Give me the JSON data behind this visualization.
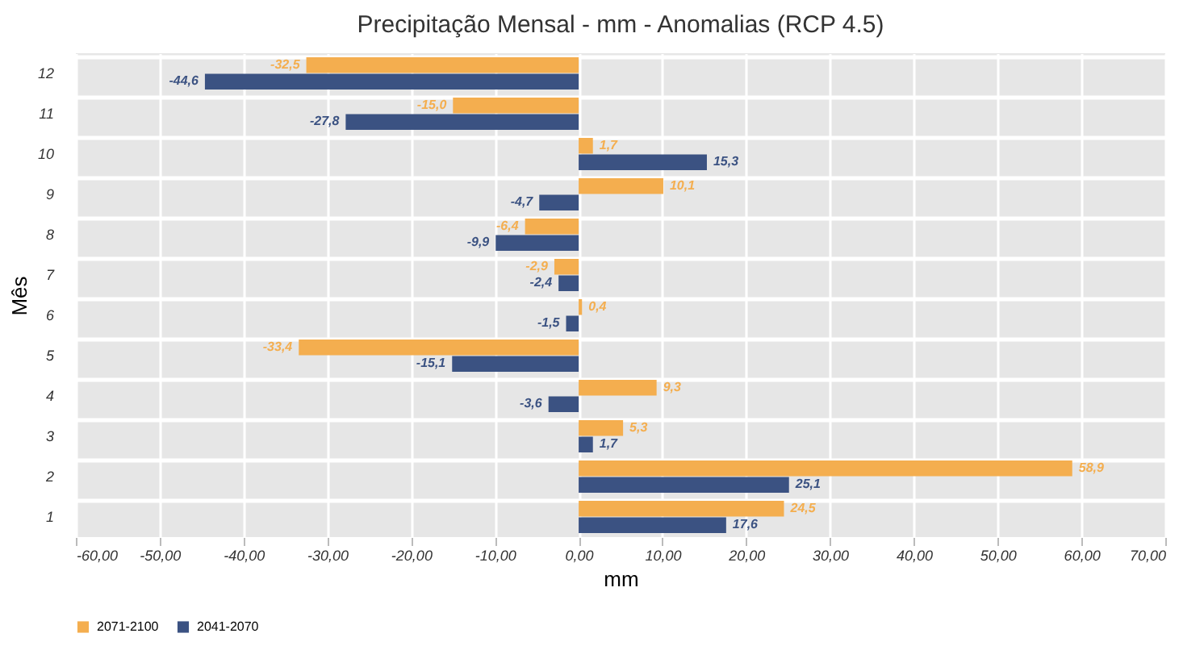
{
  "chart_data": {
    "type": "bar",
    "orientation": "horizontal",
    "title": "Precipitação Mensal - mm - Anomalias (RCP 4.5)",
    "xlabel": "mm",
    "ylabel": "Mês",
    "categories": [
      "12",
      "11",
      "10",
      "9",
      "8",
      "7",
      "6",
      "5",
      "4",
      "3",
      "2",
      "1"
    ],
    "series": [
      {
        "name": "2071-2100",
        "color": "#f4ae4f",
        "values": [
          -32.5,
          -15.0,
          1.7,
          10.1,
          -6.4,
          -2.9,
          0.4,
          -33.4,
          9.3,
          5.3,
          58.9,
          24.5
        ],
        "value_labels": [
          "-32,5",
          "-15,0",
          "1,7",
          "10,1",
          "-6,4",
          "-2,9",
          "0,4",
          "-33,4",
          "9,3",
          "5,3",
          "58,9",
          "24,5"
        ]
      },
      {
        "name": "2041-2070",
        "color": "#3b5282",
        "values": [
          -44.6,
          -27.8,
          15.3,
          -4.7,
          -9.9,
          -2.4,
          -1.5,
          -15.1,
          -3.6,
          1.7,
          25.1,
          17.6
        ],
        "value_labels": [
          "-44,6",
          "-27,8",
          "15,3",
          "-4,7",
          "-9,9",
          "-2,4",
          "-1,5",
          "-15,1",
          "-3,6",
          "1,7",
          "25,1",
          "17,6"
        ]
      }
    ],
    "xlim": [
      -60,
      70
    ],
    "xticks": [
      {
        "value": -60,
        "label": "-60,00"
      },
      {
        "value": -50,
        "label": "-50,00"
      },
      {
        "value": -40,
        "label": "-40,00"
      },
      {
        "value": -30,
        "label": "-30,00"
      },
      {
        "value": -20,
        "label": "-20,00"
      },
      {
        "value": -10,
        "label": "-10,00"
      },
      {
        "value": 0,
        "label": "0,00"
      },
      {
        "value": 10,
        "label": "10,00"
      },
      {
        "value": 20,
        "label": "20,00"
      },
      {
        "value": 30,
        "label": "30,00"
      },
      {
        "value": 40,
        "label": "40,00"
      },
      {
        "value": 50,
        "label": "50,00"
      },
      {
        "value": 60,
        "label": "60,00"
      },
      {
        "value": 70,
        "label": "70,00"
      }
    ],
    "grid": true,
    "legend": "bottom"
  }
}
